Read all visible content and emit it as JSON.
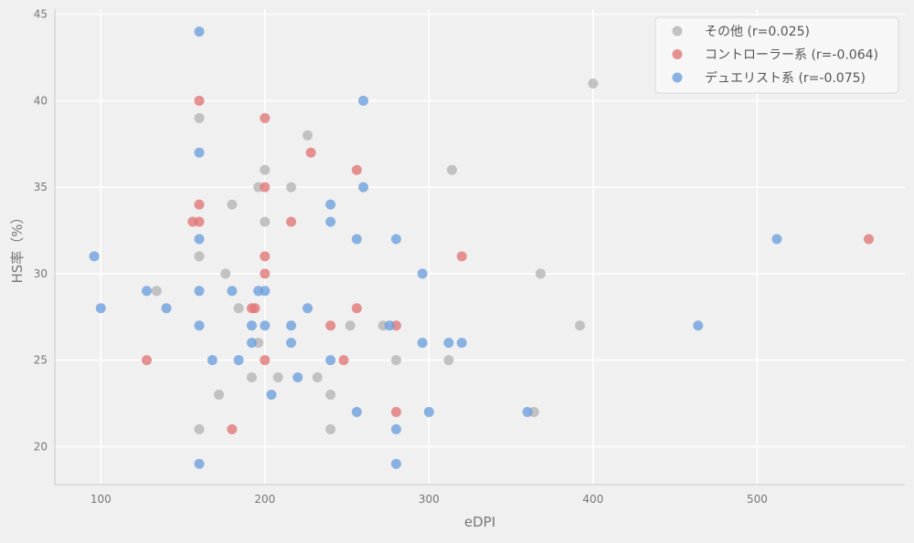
{
  "chart_data": {
    "type": "scatter",
    "title": "",
    "xlabel": "eDPI",
    "ylabel": "HS率（%）",
    "xlim": [
      72,
      590
    ],
    "ylim": [
      17.8,
      45.3
    ],
    "xticks": [
      100,
      200,
      300,
      400,
      500
    ],
    "yticks": [
      20,
      25,
      30,
      35,
      40,
      45
    ],
    "grid": true,
    "legend_position": "top-right",
    "series": [
      {
        "name": "その他 (r=0.025)",
        "color": "#b4b4b4",
        "points": [
          {
            "x": 160,
            "y": 39
          },
          {
            "x": 160,
            "y": 31
          },
          {
            "x": 160,
            "y": 21
          },
          {
            "x": 172,
            "y": 23
          },
          {
            "x": 176,
            "y": 30
          },
          {
            "x": 180,
            "y": 34
          },
          {
            "x": 184,
            "y": 28
          },
          {
            "x": 192,
            "y": 24
          },
          {
            "x": 196,
            "y": 26
          },
          {
            "x": 196,
            "y": 35
          },
          {
            "x": 200,
            "y": 36
          },
          {
            "x": 200,
            "y": 33
          },
          {
            "x": 208,
            "y": 24
          },
          {
            "x": 216,
            "y": 35
          },
          {
            "x": 226,
            "y": 38
          },
          {
            "x": 232,
            "y": 24
          },
          {
            "x": 240,
            "y": 23
          },
          {
            "x": 240,
            "y": 21
          },
          {
            "x": 252,
            "y": 27
          },
          {
            "x": 272,
            "y": 27
          },
          {
            "x": 280,
            "y": 25
          },
          {
            "x": 312,
            "y": 25
          },
          {
            "x": 314,
            "y": 36
          },
          {
            "x": 364,
            "y": 22
          },
          {
            "x": 368,
            "y": 30
          },
          {
            "x": 392,
            "y": 27
          },
          {
            "x": 400,
            "y": 41
          },
          {
            "x": 134,
            "y": 29
          }
        ]
      },
      {
        "name": "コントローラー系 (r=-0.064)",
        "color": "#e07474",
        "points": [
          {
            "x": 128,
            "y": 25
          },
          {
            "x": 156,
            "y": 33
          },
          {
            "x": 160,
            "y": 40
          },
          {
            "x": 160,
            "y": 34
          },
          {
            "x": 160,
            "y": 33
          },
          {
            "x": 180,
            "y": 21
          },
          {
            "x": 192,
            "y": 28
          },
          {
            "x": 194,
            "y": 28
          },
          {
            "x": 200,
            "y": 39
          },
          {
            "x": 200,
            "y": 35
          },
          {
            "x": 200,
            "y": 31
          },
          {
            "x": 200,
            "y": 30
          },
          {
            "x": 200,
            "y": 25
          },
          {
            "x": 216,
            "y": 33
          },
          {
            "x": 228,
            "y": 37
          },
          {
            "x": 240,
            "y": 27
          },
          {
            "x": 248,
            "y": 25
          },
          {
            "x": 256,
            "y": 36
          },
          {
            "x": 256,
            "y": 28
          },
          {
            "x": 280,
            "y": 27
          },
          {
            "x": 280,
            "y": 22
          },
          {
            "x": 320,
            "y": 31
          },
          {
            "x": 568,
            "y": 32
          }
        ]
      },
      {
        "name": "デュエリスト系 (r=-0.075)",
        "color": "#6a9fdc",
        "points": [
          {
            "x": 96,
            "y": 31
          },
          {
            "x": 100,
            "y": 28
          },
          {
            "x": 128,
            "y": 29
          },
          {
            "x": 140,
            "y": 28
          },
          {
            "x": 160,
            "y": 44
          },
          {
            "x": 160,
            "y": 37
          },
          {
            "x": 160,
            "y": 32
          },
          {
            "x": 160,
            "y": 29
          },
          {
            "x": 160,
            "y": 27
          },
          {
            "x": 160,
            "y": 19
          },
          {
            "x": 168,
            "y": 25
          },
          {
            "x": 180,
            "y": 29
          },
          {
            "x": 184,
            "y": 25
          },
          {
            "x": 192,
            "y": 27
          },
          {
            "x": 192,
            "y": 26
          },
          {
            "x": 196,
            "y": 29
          },
          {
            "x": 200,
            "y": 29
          },
          {
            "x": 200,
            "y": 27
          },
          {
            "x": 204,
            "y": 23
          },
          {
            "x": 216,
            "y": 27
          },
          {
            "x": 216,
            "y": 26
          },
          {
            "x": 220,
            "y": 24
          },
          {
            "x": 226,
            "y": 28
          },
          {
            "x": 240,
            "y": 34
          },
          {
            "x": 240,
            "y": 33
          },
          {
            "x": 240,
            "y": 25
          },
          {
            "x": 256,
            "y": 32
          },
          {
            "x": 256,
            "y": 22
          },
          {
            "x": 260,
            "y": 40
          },
          {
            "x": 260,
            "y": 35
          },
          {
            "x": 276,
            "y": 27
          },
          {
            "x": 280,
            "y": 32
          },
          {
            "x": 280,
            "y": 21
          },
          {
            "x": 280,
            "y": 19
          },
          {
            "x": 296,
            "y": 30
          },
          {
            "x": 296,
            "y": 26
          },
          {
            "x": 300,
            "y": 22
          },
          {
            "x": 312,
            "y": 26
          },
          {
            "x": 320,
            "y": 26
          },
          {
            "x": 360,
            "y": 22
          },
          {
            "x": 464,
            "y": 27
          },
          {
            "x": 512,
            "y": 32
          }
        ]
      }
    ]
  }
}
